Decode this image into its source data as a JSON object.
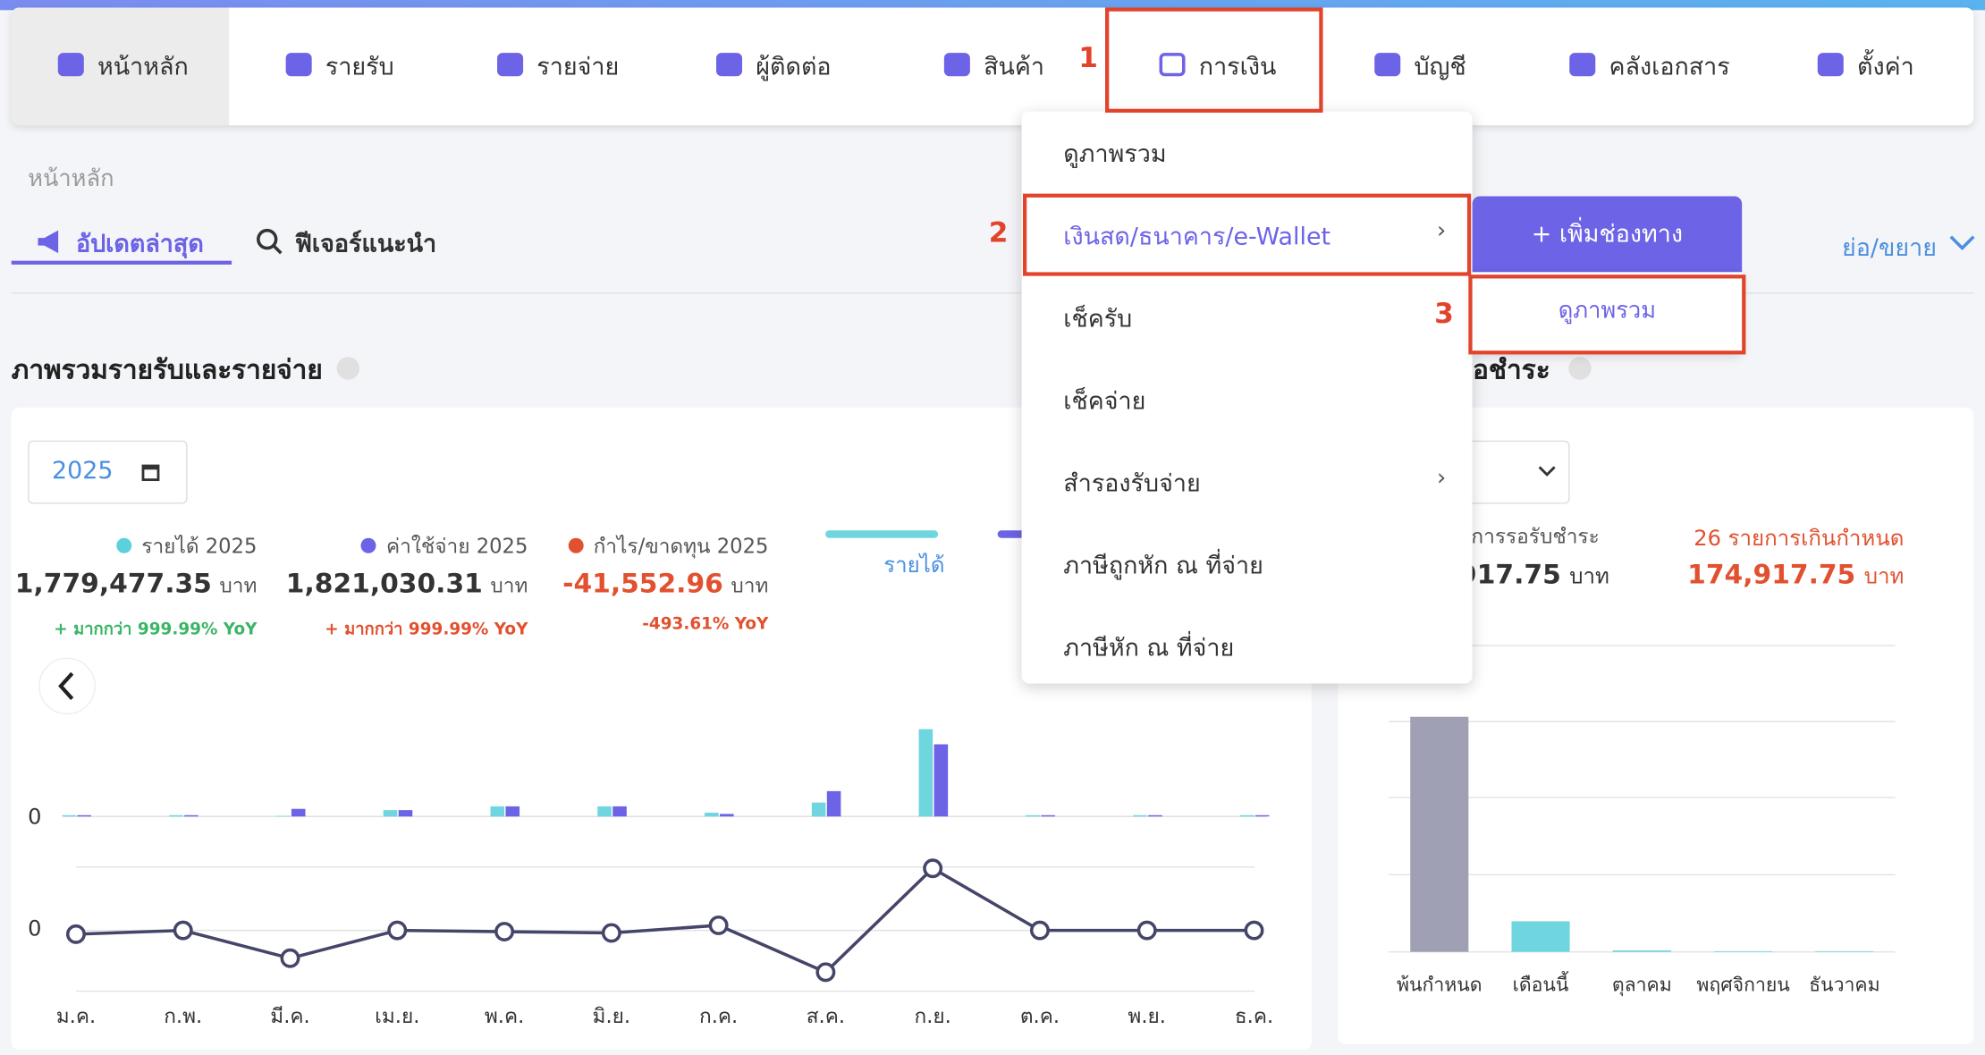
{
  "nav": {
    "items": [
      "หน้าหลัก",
      "รายรับ",
      "รายจ่าย",
      "ผู้ติดต่อ",
      "สินค้า",
      "การเงิน",
      "บัญชี",
      "คลังเอกสาร",
      "ตั้งค่า"
    ]
  },
  "annotations": [
    "1",
    "2",
    "3"
  ],
  "breadcrumb": "หน้าหลัก",
  "tabs": [
    "อัปเดตล่าสุด",
    "ฟีเจอร์แนะนำ"
  ],
  "collapse": "ย่อ/ขยาย",
  "menu": {
    "items": [
      "ดูภาพรวม",
      "เงินสด/ธนาคาร/e-Wallet",
      "เช็ครับ",
      "เช็คจ่าย",
      "สำรองรับจ่าย",
      "ภาษีถูกหัก ณ ที่จ่าย",
      "ภาษีหัก ณ ที่จ่าย"
    ],
    "submenu": {
      "button": "เพิ่มช่องทาง",
      "items": [
        "ดูภาพรวม"
      ]
    }
  },
  "overview": {
    "title": "ภาพรวมรายรับและรายจ่าย",
    "year": "2025",
    "stats": [
      {
        "label": "รายได้ 2025",
        "amount": "1,779,477.35",
        "unit": "บาท",
        "change": "+ มากกว่า 999.99% YoY",
        "color": "#5bd1dc",
        "text_color": "#3bb567"
      },
      {
        "label": "ค่าใช้จ่าย 2025",
        "amount": "1,821,030.31",
        "unit": "บาท",
        "change": "+ มากกว่า 999.99% YoY",
        "color": "#6c63e6",
        "text_color": "#e2512f"
      },
      {
        "label": "กำไร/ขาดทุน 2025",
        "amount": "-41,552.96",
        "unit": "บาท",
        "change": "-493.61% YoY",
        "color": "#e2512f",
        "text_color": "#e2512f"
      }
    ]
  },
  "chart_data": [
    {
      "type": "bar",
      "series": [
        {
          "name": "รายได้",
          "color": "#6fd6e0",
          "values": [
            1,
            1,
            0.5,
            5,
            8,
            8,
            3,
            11,
            69,
            1,
            1,
            1
          ]
        },
        {
          "color": "#6c63e6",
          "values": [
            1,
            1,
            6,
            5,
            8,
            8,
            2,
            20,
            57,
            1,
            1,
            1
          ]
        }
      ],
      "ylim": [
        0,
        70
      ],
      "yticks": [
        0
      ]
    },
    {
      "type": "line",
      "categories": [
        "ม.ค.",
        "ก.พ.",
        "มี.ค.",
        "เม.ย.",
        "พ.ค.",
        "มิ.ย.",
        "ก.ค.",
        "ส.ค.",
        "ก.ย.",
        "ต.ค.",
        "พ.ย.",
        "ธ.ค."
      ],
      "values": [
        -3,
        0,
        -22,
        0,
        -1,
        -2,
        4,
        -33,
        49,
        0,
        0,
        0
      ],
      "color": "#45456a",
      "ylim": [
        -50,
        50
      ],
      "yticks": [
        0
      ]
    },
    {
      "type": "bar",
      "categories": [
        "พ้นกำหนด",
        "เดือนนี้",
        "ตุลาคม",
        "พฤศจิกายน",
        "ธันวาคม"
      ],
      "values": [
        3.07,
        0.4,
        0.02,
        0.01,
        0.01
      ],
      "colors": [
        "#a0a0b4",
        "#6fd6e0",
        "#6fd6e0",
        "#6fd6e0",
        "#6fd6e0"
      ],
      "ylim": [
        0,
        4
      ]
    }
  ],
  "receivable": {
    "title": "รอชำระ",
    "label": "บการรอรับชำระ",
    "amount": "917.75",
    "unit": "บาท",
    "overdue_label": "26 รายการเกินกำหนด",
    "overdue_amount": "174,917.75",
    "overdue_unit": "บาท"
  }
}
